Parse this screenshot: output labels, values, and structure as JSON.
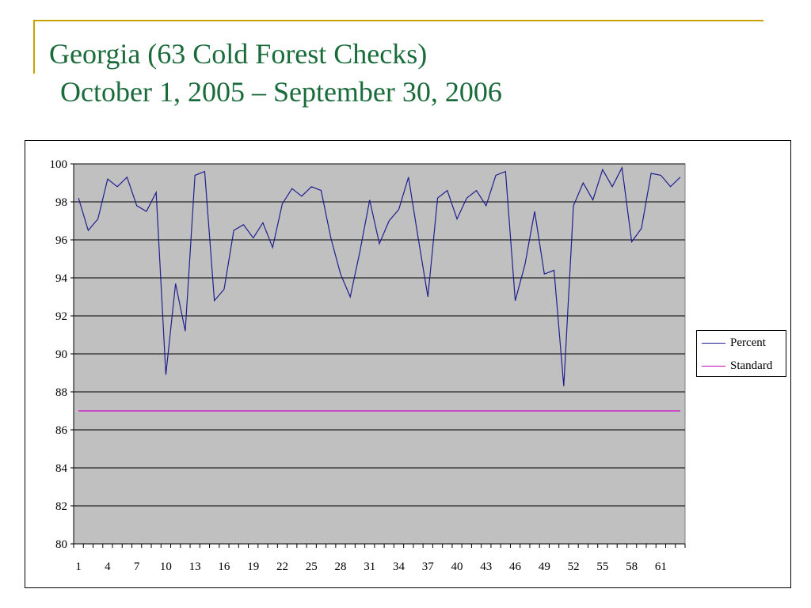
{
  "slide": {
    "title_line1": "Georgia (63 Cold Forest Checks)",
    "title_line2": "October 1, 2005 – September 30, 2006",
    "title_color": "#1a6b3a",
    "accent_color": "#c8a200"
  },
  "chart_data": {
    "type": "line",
    "title": "",
    "xlabel": "",
    "ylabel": "",
    "ylim": [
      80,
      100
    ],
    "yticks": [
      80,
      82,
      84,
      86,
      88,
      90,
      92,
      94,
      96,
      98,
      100
    ],
    "x_count": 63,
    "xtick_labels": [
      "1",
      "4",
      "7",
      "10",
      "13",
      "16",
      "19",
      "22",
      "25",
      "28",
      "31",
      "34",
      "37",
      "40",
      "43",
      "46",
      "49",
      "52",
      "55",
      "58",
      "61"
    ],
    "xtick_label_values": [
      1,
      4,
      7,
      10,
      13,
      16,
      19,
      22,
      25,
      28,
      31,
      34,
      37,
      40,
      43,
      46,
      49,
      52,
      55,
      58,
      61
    ],
    "grid": true,
    "plot_background": "#c0c0c0",
    "legend_position": "right",
    "series": [
      {
        "name": "Percent",
        "color": "#1f1f8f",
        "values": [
          98.2,
          96.5,
          97.1,
          99.2,
          98.8,
          99.3,
          97.8,
          97.5,
          98.5,
          88.9,
          93.7,
          91.2,
          99.4,
          99.6,
          92.8,
          93.4,
          96.5,
          96.8,
          96.1,
          96.9,
          95.6,
          97.9,
          98.7,
          98.3,
          98.8,
          98.6,
          96.1,
          94.2,
          93.0,
          95.4,
          98.1,
          95.8,
          97.0,
          97.6,
          99.3,
          96.1,
          93.0,
          98.2,
          98.6,
          97.1,
          98.2,
          98.6,
          97.8,
          99.4,
          99.6,
          92.8,
          94.7,
          97.5,
          94.2,
          94.4,
          88.3,
          97.8,
          99.0,
          98.1,
          99.7,
          98.8,
          99.8,
          95.9,
          96.6,
          99.5,
          99.4,
          98.8,
          99.3
        ]
      },
      {
        "name": "Standard",
        "color": "#cc00cc",
        "values": [
          87,
          87,
          87,
          87,
          87,
          87,
          87,
          87,
          87,
          87,
          87,
          87,
          87,
          87,
          87,
          87,
          87,
          87,
          87,
          87,
          87,
          87,
          87,
          87,
          87,
          87,
          87,
          87,
          87,
          87,
          87,
          87,
          87,
          87,
          87,
          87,
          87,
          87,
          87,
          87,
          87,
          87,
          87,
          87,
          87,
          87,
          87,
          87,
          87,
          87,
          87,
          87,
          87,
          87,
          87,
          87,
          87,
          87,
          87,
          87,
          87,
          87,
          87
        ]
      }
    ]
  }
}
